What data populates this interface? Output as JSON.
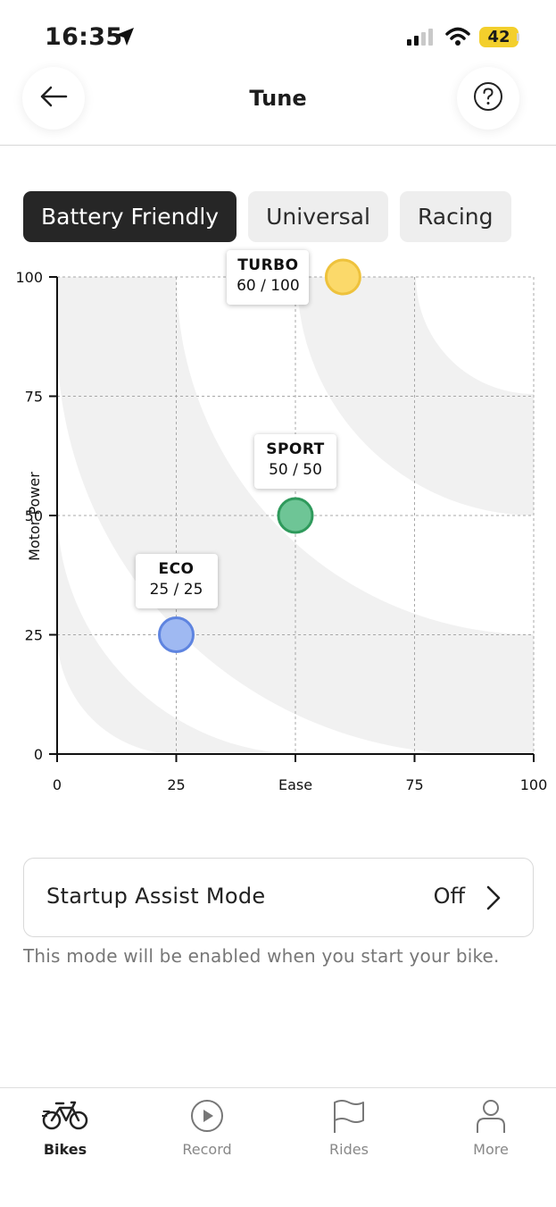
{
  "status_bar": {
    "time": "16:35",
    "battery": "42"
  },
  "header": {
    "title": "Tune"
  },
  "tabs": [
    {
      "label": "Battery Friendly",
      "active": true
    },
    {
      "label": "Universal",
      "active": false
    },
    {
      "label": "Racing",
      "active": false
    }
  ],
  "chart_data": {
    "type": "scatter",
    "xlabel": "Ease",
    "ylabel": "Motor Power",
    "xlim": [
      0,
      100
    ],
    "ylim": [
      0,
      100
    ],
    "x_ticks": [
      "0",
      "25",
      "Ease",
      "75",
      "100"
    ],
    "y_ticks": [
      "100",
      "75",
      "50",
      "25",
      "0"
    ],
    "grid": true,
    "series": [
      {
        "name": "ECO",
        "x": 25,
        "y": 25,
        "label": "25 / 25",
        "color": "#9fb9f2",
        "stroke": "#5e84e0"
      },
      {
        "name": "SPORT",
        "x": 50,
        "y": 50,
        "label": "50 / 50",
        "color": "#6ec596",
        "stroke": "#2f9a5c"
      },
      {
        "name": "TURBO",
        "x": 60,
        "y": 100,
        "label": "60 / 100",
        "color": "#fbd96a",
        "stroke": "#eec23c"
      }
    ]
  },
  "startup_assist": {
    "label": "Startup Assist Mode",
    "value": "Off",
    "description": "This mode will be enabled when you start your bike."
  },
  "bottom_nav": [
    {
      "label": "Bikes",
      "icon": "bike-icon",
      "active": true
    },
    {
      "label": "Record",
      "icon": "play-circle-icon",
      "active": false
    },
    {
      "label": "Rides",
      "icon": "flag-icon",
      "active": false
    },
    {
      "label": "More",
      "icon": "person-icon",
      "active": false
    }
  ]
}
